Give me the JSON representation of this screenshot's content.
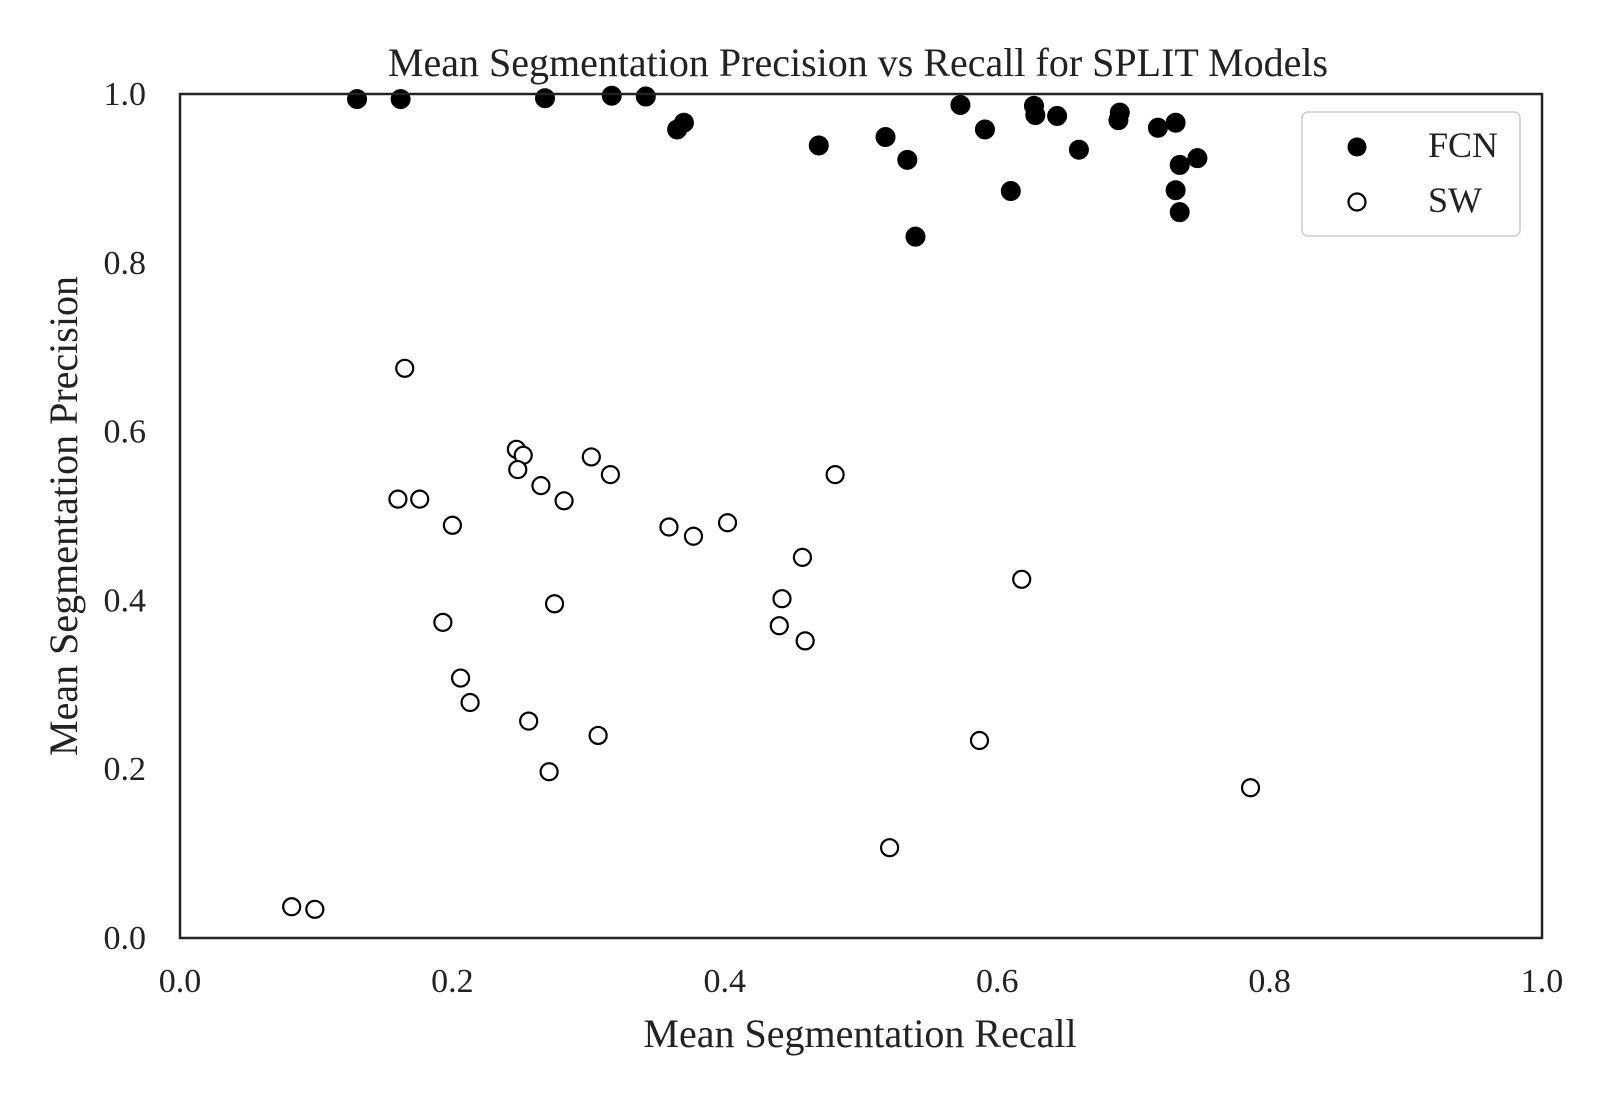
{
  "chart_data": {
    "type": "scatter",
    "title": "Mean Segmentation Precision vs Recall for SPLIT Models",
    "xlabel": "Mean Segmentation Recall",
    "ylabel": "Mean Segmentation Precision",
    "xlim": [
      0.0,
      1.0
    ],
    "ylim": [
      0.0,
      1.0
    ],
    "xticks": [
      "0.0",
      "0.2",
      "0.4",
      "0.6",
      "0.8",
      "1.0"
    ],
    "yticks": [
      "0.0",
      "0.2",
      "0.4",
      "0.6",
      "0.8",
      "1.0"
    ],
    "grid": false,
    "legend_position": "top-right",
    "series": [
      {
        "name": "FCN",
        "marker": "filled-circle",
        "color": "#000000",
        "points": [
          [
            0.13,
            0.994
          ],
          [
            0.162,
            0.994
          ],
          [
            0.268,
            0.995
          ],
          [
            0.317,
            0.998
          ],
          [
            0.342,
            0.997
          ],
          [
            0.365,
            0.958
          ],
          [
            0.37,
            0.966
          ],
          [
            0.469,
            0.939
          ],
          [
            0.518,
            0.949
          ],
          [
            0.534,
            0.922
          ],
          [
            0.54,
            0.831
          ],
          [
            0.573,
            0.987
          ],
          [
            0.591,
            0.958
          ],
          [
            0.61,
            0.885
          ],
          [
            0.627,
            0.986
          ],
          [
            0.628,
            0.975
          ],
          [
            0.644,
            0.974
          ],
          [
            0.66,
            0.934
          ],
          [
            0.69,
            0.978
          ],
          [
            0.689,
            0.969
          ],
          [
            0.718,
            0.96
          ],
          [
            0.731,
            0.966
          ],
          [
            0.731,
            0.886
          ],
          [
            0.734,
            0.916
          ],
          [
            0.734,
            0.86
          ],
          [
            0.747,
            0.924
          ]
        ]
      },
      {
        "name": "SW",
        "marker": "open-circle",
        "color": "#000000",
        "points": [
          [
            0.082,
            0.037
          ],
          [
            0.099,
            0.034
          ],
          [
            0.165,
            0.675
          ],
          [
            0.16,
            0.52
          ],
          [
            0.176,
            0.52
          ],
          [
            0.193,
            0.374
          ],
          [
            0.2,
            0.489
          ],
          [
            0.206,
            0.308
          ],
          [
            0.213,
            0.279
          ],
          [
            0.247,
            0.579
          ],
          [
            0.252,
            0.572
          ],
          [
            0.248,
            0.555
          ],
          [
            0.256,
            0.257
          ],
          [
            0.265,
            0.536
          ],
          [
            0.271,
            0.197
          ],
          [
            0.275,
            0.396
          ],
          [
            0.282,
            0.518
          ],
          [
            0.302,
            0.57
          ],
          [
            0.307,
            0.24
          ],
          [
            0.316,
            0.549
          ],
          [
            0.359,
            0.487
          ],
          [
            0.377,
            0.476
          ],
          [
            0.402,
            0.492
          ],
          [
            0.44,
            0.37
          ],
          [
            0.442,
            0.402
          ],
          [
            0.457,
            0.451
          ],
          [
            0.459,
            0.352
          ],
          [
            0.481,
            0.549
          ],
          [
            0.521,
            0.107
          ],
          [
            0.587,
            0.234
          ],
          [
            0.618,
            0.425
          ],
          [
            0.786,
            0.178
          ]
        ]
      }
    ]
  }
}
